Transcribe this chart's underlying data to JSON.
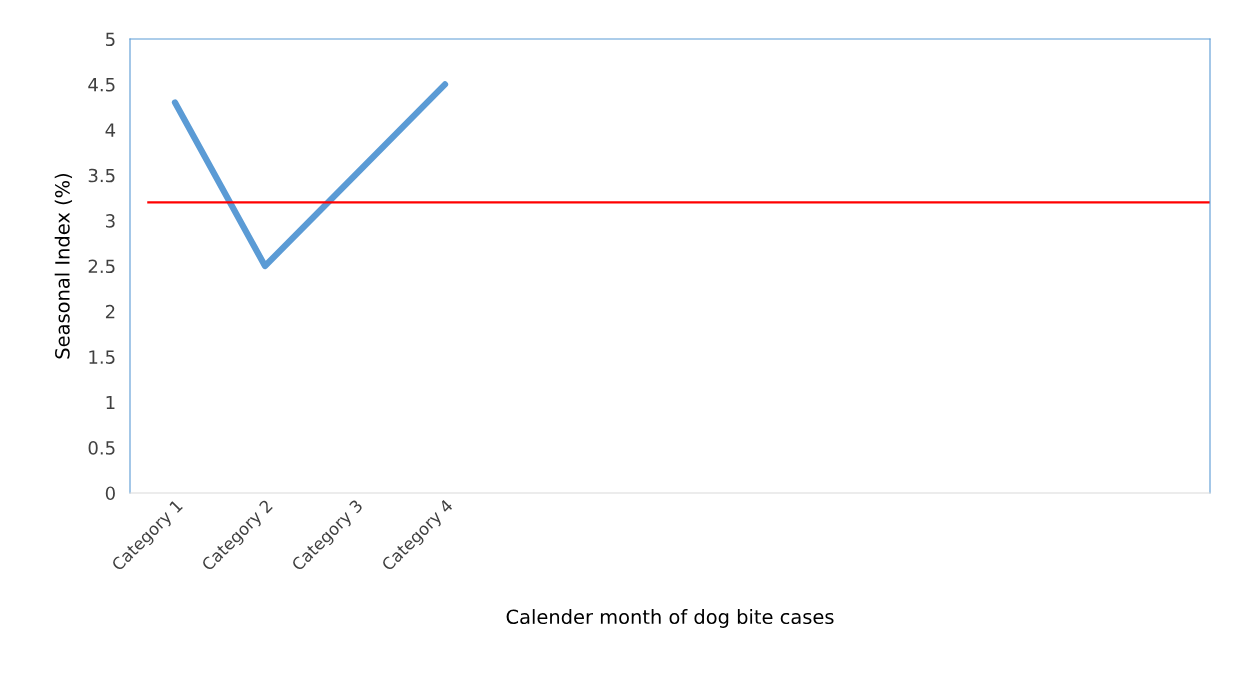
{
  "chart_data": {
    "type": "line",
    "xlabel": "Calender month of dog bite cases",
    "ylabel": "Seasonal Index (%)",
    "categories": [
      "Category 1",
      "Category 2",
      "Category 3",
      "Category 4",
      null,
      null,
      null,
      null,
      null,
      null,
      null,
      null
    ],
    "series": [
      {
        "color": "#5b9bd5",
        "values": [
          4.3,
          2.5,
          3.5,
          4.5,
          null,
          null,
          null,
          null,
          null,
          null,
          null,
          null
        ]
      }
    ],
    "ylim": [
      0,
      5
    ],
    "yticks": [
      0,
      0.5,
      1,
      1.5,
      2,
      2.5,
      3,
      3.5,
      4,
      4.5,
      5
    ],
    "ref_lines": [
      {
        "axis": "y",
        "value": 3.2,
        "color": "#ff0000"
      }
    ],
    "grid": false,
    "legend": false,
    "marker": "none",
    "line_style": "solid"
  }
}
